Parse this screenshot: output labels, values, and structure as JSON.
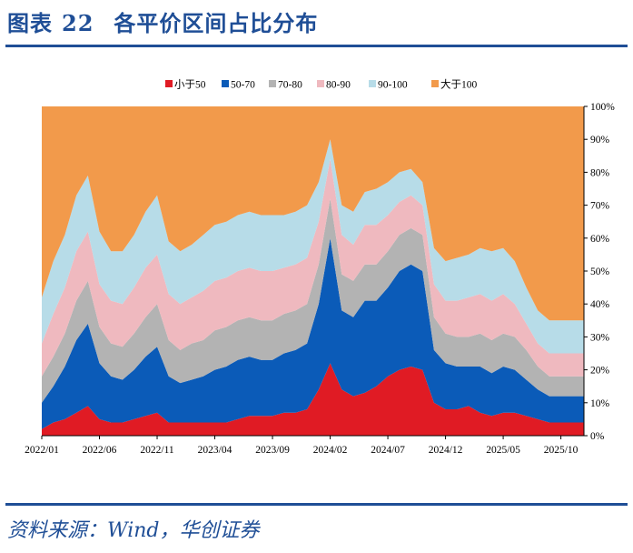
{
  "header": {
    "label": "图表",
    "number": "22",
    "title": "各平价区间占比分布"
  },
  "source": "资料来源：Wind，华创证券",
  "chart_data": {
    "type": "area",
    "stacked": true,
    "normalized": true,
    "x": [
      "2022/01",
      "2022/02",
      "2022/03",
      "2022/04",
      "2022/05",
      "2022/06",
      "2022/07",
      "2022/08",
      "2022/09",
      "2022/10",
      "2022/11",
      "2022/12",
      "2023/01",
      "2023/02",
      "2023/03",
      "2023/04",
      "2023/05",
      "2023/06",
      "2023/07",
      "2023/08",
      "2023/09",
      "2023/10",
      "2023/11",
      "2023/12",
      "2024/01",
      "2024/02",
      "2024/03",
      "2024/04",
      "2024/05",
      "2024/06",
      "2024/07",
      "2024/08",
      "2024/09",
      "2024/10",
      "2024/11",
      "2024/12",
      "2025/01",
      "2025/02",
      "2025/03",
      "2025/04",
      "2025/05",
      "2025/06",
      "2025/07",
      "2025/08",
      "2025/09",
      "2025/10",
      "2025/11",
      "2025/12"
    ],
    "x_ticks": [
      "2022/01",
      "2022/06",
      "2022/11",
      "2023/04",
      "2023/09",
      "2024/02",
      "2024/07",
      "2024/12",
      "2025/05",
      "2025/10"
    ],
    "y_ticks": [
      "0%",
      "10%",
      "20%",
      "30%",
      "40%",
      "50%",
      "60%",
      "70%",
      "80%",
      "90%",
      "100%"
    ],
    "ylim": [
      0,
      100
    ],
    "legend_position": "top",
    "series": [
      {
        "name": "小于50",
        "color": "#e01b24",
        "values": [
          2,
          4,
          5,
          7,
          9,
          5,
          4,
          4,
          5,
          6,
          7,
          4,
          4,
          4,
          4,
          4,
          4,
          5,
          6,
          6,
          6,
          7,
          7,
          8,
          14,
          22,
          14,
          12,
          13,
          15,
          18,
          20,
          21,
          20,
          10,
          8,
          8,
          9,
          7,
          6,
          7,
          7,
          6,
          5,
          4,
          4,
          4,
          4
        ]
      },
      {
        "name": "50-70",
        "color": "#0b5bb8",
        "values": [
          8,
          11,
          16,
          22,
          25,
          17,
          14,
          13,
          15,
          18,
          20,
          14,
          12,
          13,
          14,
          16,
          17,
          18,
          18,
          17,
          17,
          18,
          19,
          20,
          26,
          38,
          24,
          24,
          28,
          26,
          27,
          30,
          31,
          30,
          16,
          14,
          13,
          12,
          14,
          13,
          14,
          13,
          11,
          9,
          8,
          8,
          8,
          8
        ]
      },
      {
        "name": "70-80",
        "color": "#b3b3b3",
        "values": [
          8,
          9,
          10,
          12,
          13,
          11,
          10,
          10,
          11,
          12,
          13,
          11,
          10,
          11,
          11,
          12,
          12,
          12,
          12,
          12,
          12,
          12,
          12,
          12,
          12,
          12,
          11,
          11,
          11,
          11,
          11,
          11,
          11,
          11,
          10,
          9,
          9,
          9,
          10,
          10,
          10,
          10,
          9,
          7,
          6,
          6,
          6,
          6
        ]
      },
      {
        "name": "80-90",
        "color": "#efb9bf",
        "values": [
          10,
          13,
          14,
          15,
          15,
          13,
          13,
          13,
          14,
          15,
          15,
          14,
          14,
          14,
          15,
          15,
          15,
          15,
          15,
          15,
          15,
          14,
          14,
          14,
          13,
          12,
          12,
          11,
          12,
          12,
          11,
          10,
          10,
          9,
          10,
          10,
          11,
          12,
          12,
          12,
          12,
          10,
          8,
          7,
          7,
          7,
          7,
          7
        ]
      },
      {
        "name": "90-100",
        "color": "#b7dce8",
        "values": [
          14,
          16,
          16,
          17,
          17,
          16,
          15,
          16,
          16,
          17,
          18,
          16,
          16,
          16,
          17,
          17,
          17,
          17,
          17,
          17,
          17,
          16,
          16,
          16,
          12,
          6,
          9,
          10,
          10,
          11,
          10,
          9,
          8,
          7,
          11,
          12,
          13,
          13,
          14,
          15,
          14,
          13,
          11,
          10,
          10,
          10,
          10,
          10
        ]
      },
      {
        "name": "大于100",
        "color": "#f29a4b",
        "values": [
          58,
          47,
          39,
          27,
          21,
          38,
          44,
          44,
          39,
          32,
          27,
          41,
          44,
          42,
          39,
          36,
          35,
          33,
          32,
          33,
          33,
          33,
          32,
          30,
          23,
          10,
          30,
          32,
          26,
          25,
          23,
          20,
          19,
          23,
          43,
          47,
          46,
          45,
          43,
          44,
          43,
          47,
          55,
          62,
          65,
          65,
          65,
          65
        ]
      }
    ]
  }
}
